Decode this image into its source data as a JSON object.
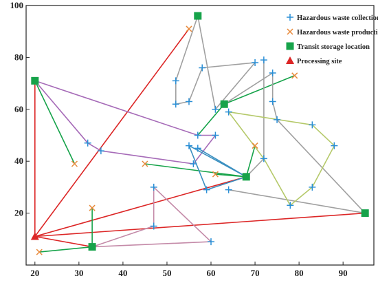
{
  "chart_data": {
    "type": "scatter",
    "title": "",
    "xlabel": "",
    "ylabel": "",
    "xlim": [
      18,
      97
    ],
    "ylim": [
      0,
      100
    ],
    "xticks": [
      20,
      30,
      40,
      50,
      60,
      70,
      80,
      90
    ],
    "yticks": [
      20,
      40,
      60,
      80,
      100
    ],
    "legend_position": "top-right",
    "legend": [
      {
        "key": "collection",
        "label": "Hazardous waste collection site",
        "color": "#2a8fd6",
        "marker": "plus"
      },
      {
        "key": "production",
        "label": "Hazardous waste production site",
        "color": "#e8893a",
        "marker": "x"
      },
      {
        "key": "transit",
        "label": "Transit storage location",
        "color": "#16a34a",
        "marker": "square"
      },
      {
        "key": "processing",
        "label": "Processing site",
        "color": "#dc2626",
        "marker": "triangle"
      }
    ],
    "points": {
      "collection": [
        [
          52,
          71
        ],
        [
          52,
          62
        ],
        [
          55,
          63
        ],
        [
          58,
          76
        ],
        [
          70,
          78
        ],
        [
          72,
          79
        ],
        [
          74,
          74
        ],
        [
          74,
          63
        ],
        [
          75,
          56
        ],
        [
          83,
          54
        ],
        [
          88,
          46
        ],
        [
          83,
          30
        ],
        [
          78,
          23
        ],
        [
          72,
          41
        ],
        [
          64,
          29
        ],
        [
          59,
          29
        ],
        [
          61,
          50
        ],
        [
          57,
          50
        ],
        [
          55,
          46
        ],
        [
          57,
          45
        ],
        [
          56,
          39
        ],
        [
          61,
          60
        ],
        [
          64,
          59
        ],
        [
          32,
          47
        ],
        [
          35,
          44
        ],
        [
          47,
          30
        ],
        [
          47,
          15
        ],
        [
          60,
          9
        ]
      ],
      "production": [
        [
          55,
          91
        ],
        [
          79,
          73
        ],
        [
          70,
          46
        ],
        [
          61,
          35
        ],
        [
          45,
          39
        ],
        [
          29,
          39
        ],
        [
          33,
          22
        ],
        [
          21,
          5
        ]
      ],
      "transit": [
        [
          57,
          96
        ],
        [
          20,
          71
        ],
        [
          63,
          62
        ],
        [
          68,
          34
        ],
        [
          95,
          20
        ],
        [
          33,
          7
        ]
      ],
      "processing": [
        [
          20,
          11
        ]
      ]
    },
    "routes": [
      {
        "color": "#dc2626",
        "path": [
          [
            20,
            11
          ],
          [
            20,
            71
          ]
        ]
      },
      {
        "color": "#dc2626",
        "path": [
          [
            20,
            11
          ],
          [
            55,
            91
          ]
        ]
      },
      {
        "color": "#dc2626",
        "path": [
          [
            20,
            11
          ],
          [
            68,
            34
          ]
        ]
      },
      {
        "color": "#dc2626",
        "path": [
          [
            20,
            11
          ],
          [
            95,
            20
          ]
        ]
      },
      {
        "color": "#dc2626",
        "path": [
          [
            20,
            11
          ],
          [
            33,
            7
          ]
        ]
      },
      {
        "color": "#16a34a",
        "path": [
          [
            20,
            71
          ],
          [
            29,
            39
          ]
        ]
      },
      {
        "color": "#16a34a",
        "path": [
          [
            63,
            62
          ],
          [
            79,
            73
          ]
        ]
      },
      {
        "color": "#16a34a",
        "path": [
          [
            68,
            34
          ],
          [
            70,
            46
          ]
        ]
      },
      {
        "color": "#16a34a",
        "path": [
          [
            68,
            34
          ],
          [
            45,
            39
          ]
        ]
      },
      {
        "color": "#16a34a",
        "path": [
          [
            68,
            34
          ],
          [
            61,
            35
          ]
        ]
      },
      {
        "color": "#16a34a",
        "path": [
          [
            33,
            7
          ],
          [
            33,
            22
          ]
        ]
      },
      {
        "color": "#16a34a",
        "path": [
          [
            33,
            7
          ],
          [
            21,
            5
          ]
        ]
      },
      {
        "color": "#16a34a",
        "path": [
          [
            63,
            62
          ],
          [
            57,
            50
          ]
        ]
      },
      {
        "color": "#a0a0a0",
        "path": [
          [
            57,
            96
          ],
          [
            52,
            71
          ],
          [
            52,
            62
          ],
          [
            55,
            63
          ],
          [
            58,
            76
          ],
          [
            70,
            78
          ],
          [
            61,
            60
          ],
          [
            57,
            96
          ]
        ]
      },
      {
        "color": "#a0a0a0",
        "path": [
          [
            63,
            62
          ],
          [
            74,
            74
          ],
          [
            74,
            63
          ],
          [
            75,
            56
          ],
          [
            95,
            20
          ],
          [
            64,
            29
          ]
        ]
      },
      {
        "color": "#a0a0a0",
        "path": [
          [
            68,
            34
          ],
          [
            72,
            41
          ],
          [
            72,
            79
          ]
        ]
      },
      {
        "color": "#b5c96a",
        "path": [
          [
            64,
            59
          ],
          [
            83,
            54
          ],
          [
            88,
            46
          ],
          [
            83,
            30
          ],
          [
            78,
            23
          ],
          [
            72,
            41
          ],
          [
            64,
            59
          ]
        ]
      },
      {
        "color": "#a66bb8",
        "path": [
          [
            20,
            71
          ],
          [
            57,
            50
          ],
          [
            61,
            50
          ],
          [
            56,
            39
          ],
          [
            35,
            44
          ],
          [
            32,
            47
          ],
          [
            20,
            71
          ]
        ]
      },
      {
        "color": "#3a8fc0",
        "path": [
          [
            68,
            34
          ],
          [
            55,
            46
          ],
          [
            59,
            29
          ],
          [
            68,
            34
          ]
        ]
      },
      {
        "color": "#3a8fc0",
        "path": [
          [
            57,
            45
          ],
          [
            68,
            34
          ]
        ]
      },
      {
        "color": "#c48aa8",
        "path": [
          [
            33,
            7
          ],
          [
            60,
            9
          ],
          [
            47,
            30
          ],
          [
            47,
            15
          ],
          [
            33,
            7
          ]
        ]
      }
    ]
  }
}
